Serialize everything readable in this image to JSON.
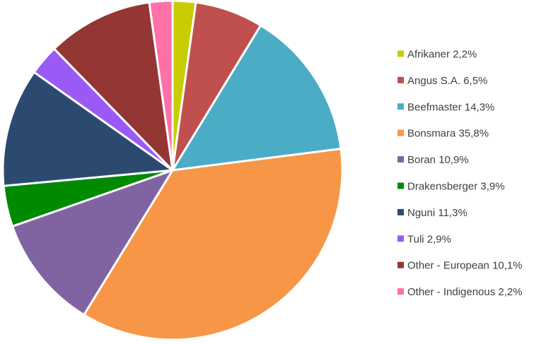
{
  "chart_data": {
    "type": "pie",
    "title": "",
    "legend_position": "right",
    "start_angle_deg": 0,
    "direction": "clockwise",
    "slices": [
      {
        "label": "Afrikaner 2,2%",
        "value": 2.2,
        "color": "#c8cc00"
      },
      {
        "label": "Angus S.A. 6,5%",
        "value": 6.5,
        "color": "#c0504d"
      },
      {
        "label": "Beefmaster 14,3%",
        "value": 14.3,
        "color": "#4bacc6"
      },
      {
        "label": "Bonsmara 35,8%",
        "value": 35.8,
        "color": "#f79646"
      },
      {
        "label": "Boran 10,9%",
        "value": 10.9,
        "color": "#8064a2"
      },
      {
        "label": "Drakensberger 3,9%",
        "value": 3.9,
        "color": "#008a00"
      },
      {
        "label": "Nguni 11,3%",
        "value": 11.3,
        "color": "#2c4a70"
      },
      {
        "label": "Tuli 2,9%",
        "value": 2.9,
        "color": "#9b59f6"
      },
      {
        "label": "Other - European 10,1%",
        "value": 10.1,
        "color": "#943634"
      },
      {
        "label": "Other - Indigenous 2,2%",
        "value": 2.2,
        "color": "#ff6fa8"
      }
    ]
  }
}
